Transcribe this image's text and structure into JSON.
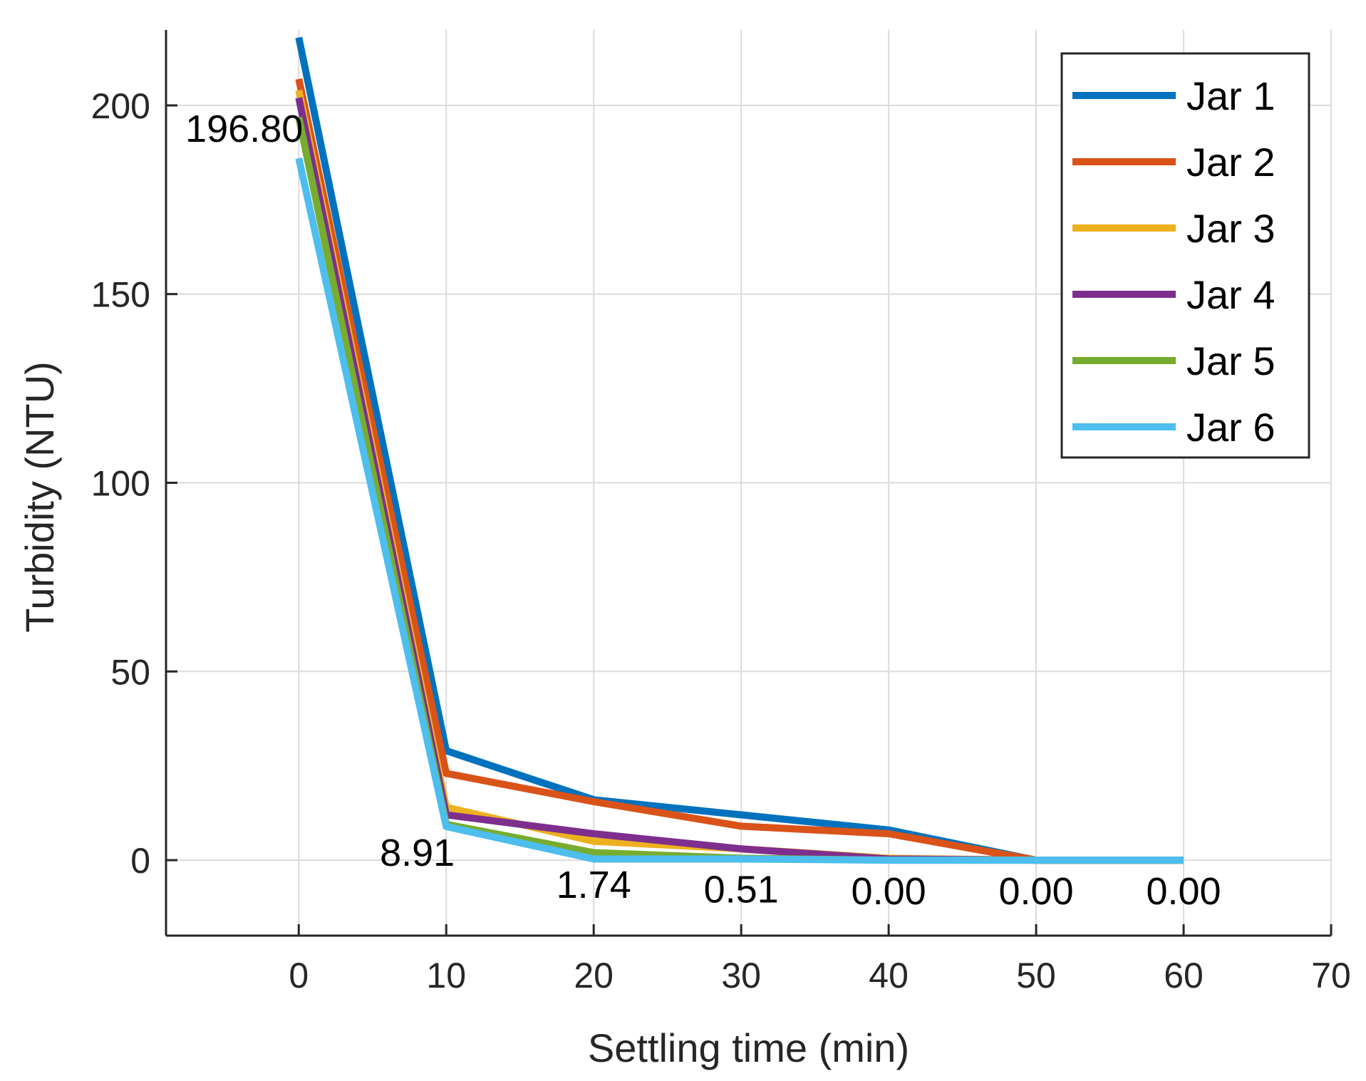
{
  "chart_data": {
    "type": "line",
    "title": "",
    "xlabel": "Settling time (min)",
    "ylabel": "Turbidity (NTU)",
    "xlim": [
      -9,
      70
    ],
    "ylim": [
      -20,
      220
    ],
    "xticks": [
      0,
      10,
      20,
      30,
      40,
      50,
      60,
      70
    ],
    "yticks": [
      0,
      50,
      100,
      150,
      200
    ],
    "xtick_labels": [
      "0",
      "10",
      "20",
      "30",
      "40",
      "50",
      "60",
      "70"
    ],
    "ytick_labels": [
      "0",
      "50",
      "100",
      "150",
      "200"
    ],
    "grid": true,
    "legend_position": "top-right",
    "x": [
      0,
      10,
      20,
      30,
      40,
      50,
      60
    ],
    "series": [
      {
        "name": "Jar 1",
        "color": "#0072BD",
        "values": [
          218,
          29,
          16,
          12,
          8,
          0,
          0
        ]
      },
      {
        "name": "Jar 2",
        "color": "#D95319",
        "values": [
          207,
          23,
          15.5,
          9,
          7,
          0,
          0
        ]
      },
      {
        "name": "Jar 3",
        "color": "#EDB120",
        "values": [
          204,
          14,
          5,
          3,
          0.5,
          0,
          0
        ]
      },
      {
        "name": "Jar 4",
        "color": "#7E2F8E",
        "values": [
          202,
          12,
          7,
          3,
          0.3,
          0,
          0
        ]
      },
      {
        "name": "Jar 5",
        "color": "#77AC30",
        "values": [
          196.8,
          9.5,
          2,
          0.5,
          0,
          0,
          0
        ]
      },
      {
        "name": "Jar 6",
        "color": "#4DBEEE",
        "values": [
          186,
          8.91,
          0.3,
          0.3,
          0,
          0,
          0
        ]
      }
    ],
    "annotations": [
      {
        "text": "196.80",
        "x": 0,
        "y": 196.8
      },
      {
        "text": "8.91",
        "x": 10,
        "y": 8.91
      },
      {
        "text": "1.74",
        "x": 20,
        "y": 1.74
      },
      {
        "text": "0.51",
        "x": 30,
        "y": 0.51
      },
      {
        "text": "0.00",
        "x": 40,
        "y": 0
      },
      {
        "text": "0.00",
        "x": 50,
        "y": 0
      },
      {
        "text": "0.00",
        "x": 60,
        "y": 0
      }
    ]
  }
}
